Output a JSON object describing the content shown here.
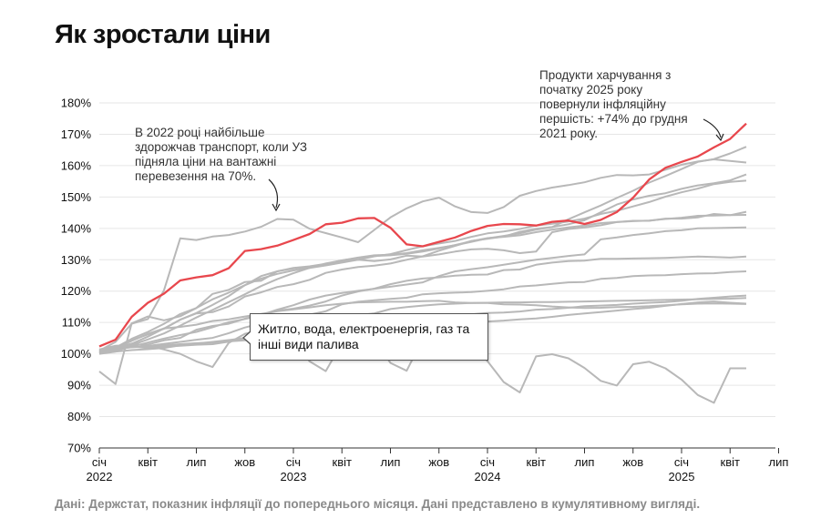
{
  "title": "Як зростали ціни",
  "annotations": {
    "left": "В 2022 році найбільше здорожчав транспорт, коли УЗ підняла ціни на вантажні перевезення на 70%.",
    "right": "Продукти харчування з початку 2025 року повернули інфляційну першість: +74% до грудня 2021 року."
  },
  "tooltip": "Житло, вода, електроенергія, газ та інші види палива",
  "source": "Дані: Держстат, показник інфляції до попереднього місяця. Дані представлено в кумулятивному вигляді.",
  "colors": {
    "highlight": "#e8474d",
    "other": "#b8b8b8",
    "grid": "#e6e6e6"
  },
  "chart_data": {
    "type": "line",
    "x_start": "2022-01",
    "ylim": [
      70,
      180
    ],
    "y_ticks": [
      "70%",
      "80%",
      "90%",
      "100%",
      "110%",
      "120%",
      "130%",
      "140%",
      "150%",
      "160%",
      "170%",
      "180%"
    ],
    "x_ticks": [
      {
        "label": "січ",
        "year": "2022"
      },
      {
        "label": "квіт",
        "year": ""
      },
      {
        "label": "лип",
        "year": ""
      },
      {
        "label": "жов",
        "year": ""
      },
      {
        "label": "січ",
        "year": "2023"
      },
      {
        "label": "квіт",
        "year": ""
      },
      {
        "label": "лип",
        "year": ""
      },
      {
        "label": "жов",
        "year": ""
      },
      {
        "label": "січ",
        "year": "2024"
      },
      {
        "label": "квіт",
        "year": ""
      },
      {
        "label": "лип",
        "year": ""
      },
      {
        "label": "жов",
        "year": ""
      },
      {
        "label": "січ",
        "year": "2025"
      },
      {
        "label": "квіт",
        "year": ""
      },
      {
        "label": "лип",
        "year": ""
      }
    ],
    "highlight_series": {
      "name": "Продукти харчування",
      "values": [
        102.4,
        104.5,
        111.8,
        116.3,
        119.2,
        123.4,
        124.4,
        125.1,
        127.3,
        132.8,
        133.4,
        134.5,
        136.3,
        138.2,
        141.3,
        141.8,
        143.2,
        143.3,
        140.2,
        134.9,
        134.3,
        135.7,
        137.1,
        139.2,
        140.8,
        141.4,
        141.3,
        140.9,
        142.1,
        142.5,
        141.4,
        142.7,
        145.2,
        149.8,
        155.6,
        159.3,
        161.2,
        162.9,
        165.8,
        168.5,
        173.4
      ]
    },
    "series": [
      {
        "values": [
          101.0,
          103.8,
          109.6,
          111.1,
          120.3,
          136.8,
          136.3,
          137.4,
          137.9,
          139.0,
          140.5,
          143.0,
          142.8,
          139.9,
          138.5,
          137.1,
          135.6,
          139.5,
          143.5,
          146.4,
          148.6,
          149.8,
          147.0,
          145.2,
          144.9,
          146.8,
          150.4,
          151.9,
          153.0,
          153.8,
          154.7,
          156.1,
          157.0,
          156.9,
          157.2,
          158.7,
          160.3,
          161.3,
          162.0,
          161.5,
          161.0
        ]
      },
      {
        "values": [
          100.5,
          102.0,
          104.3,
          106.2,
          108.0,
          110.9,
          112.9,
          113.3,
          115.1,
          118.3,
          119.6,
          121.3,
          122.2,
          123.6,
          125.8,
          126.9,
          127.7,
          128.1,
          128.8,
          130.0,
          131.1,
          132.9,
          134.4,
          136.0,
          136.7,
          137.4,
          138.9,
          139.9,
          140.4,
          142.9,
          145.1,
          147.3,
          149.7,
          152.0,
          154.6,
          156.7,
          158.9,
          161.2,
          162.1,
          163.9,
          166.0
        ]
      },
      {
        "values": [
          100.3,
          101.4,
          103.2,
          105.5,
          108.1,
          110.9,
          113.0,
          115.6,
          118.4,
          121.9,
          124.8,
          126.3,
          127.4,
          127.9,
          128.7,
          129.8,
          130.7,
          131.4,
          131.6,
          132.1,
          133.0,
          133.8,
          134.6,
          135.7,
          136.8,
          137.6,
          138.4,
          139.6,
          140.4,
          141.3,
          142.6,
          145.1,
          147.6,
          149.2,
          150.4,
          151.2,
          152.6,
          153.7,
          154.4,
          155.3,
          157.2
        ]
      },
      {
        "values": [
          100.6,
          102.0,
          104.8,
          107.0,
          109.6,
          112.7,
          114.6,
          117.4,
          119.5,
          121.9,
          124.0,
          125.5,
          126.6,
          127.4,
          128.2,
          129.1,
          130.0,
          131.1,
          131.8,
          133.1,
          134.3,
          135.2,
          136.0,
          137.3,
          138.4,
          139.0,
          139.8,
          140.9,
          141.5,
          142.2,
          143.1,
          144.6,
          145.6,
          147.0,
          148.4,
          150.1,
          151.5,
          152.7,
          154.1,
          154.8,
          155.2
        ]
      },
      {
        "values": [
          100.4,
          101.3,
          102.8,
          104.6,
          106.5,
          109.0,
          111.6,
          114.0,
          116.5,
          119.0,
          121.6,
          123.8,
          125.7,
          127.4,
          128.8,
          129.8,
          130.6,
          131.2,
          131.4,
          131.9,
          132.6,
          133.6,
          134.7,
          135.9,
          136.9,
          137.3,
          137.8,
          138.8,
          139.6,
          140.3,
          140.9,
          141.7,
          142.0,
          142.3,
          142.5,
          143.0,
          143.4,
          144.0,
          144.1,
          144.2,
          144.3
        ]
      },
      {
        "values": [
          100.2,
          101.0,
          102.3,
          103.6,
          104.9,
          106.0,
          107.0,
          108.5,
          110.1,
          111.1,
          112.4,
          114.1,
          115.5,
          117.3,
          118.6,
          119.4,
          120.1,
          120.7,
          121.4,
          122.1,
          122.8,
          124.8,
          126.3,
          127.0,
          127.6,
          128.4,
          129.2,
          130.0,
          130.6,
          131.2,
          131.7,
          136.5,
          137.1,
          137.9,
          138.4,
          139.1,
          139.4,
          140.0,
          140.1,
          140.2,
          140.3
        ]
      },
      {
        "values": [
          94.4,
          90.4,
          109.7,
          111.9,
          110.7,
          112.0,
          114.6,
          119.1,
          120.4,
          122.9,
          123.3,
          126.3,
          127.2,
          127.8,
          128.6,
          129.6,
          130.0,
          129.6,
          130.1,
          131.3,
          131.0,
          131.7,
          132.6,
          133.3,
          133.5,
          133.0,
          132.1,
          132.6,
          138.8,
          139.8,
          140.3,
          141.0,
          142.0,
          142.4,
          142.4,
          143.1,
          143.1,
          143.5,
          144.6,
          144.2,
          145.3
        ]
      },
      {
        "values": [
          101.4,
          102.6,
          102.8,
          103.0,
          104.3,
          105.1,
          107.7,
          108.9,
          109.6,
          111.2,
          112.4,
          113.8,
          114.4,
          115.4,
          116.7,
          118.6,
          119.9,
          120.8,
          122.2,
          123.3,
          124.0,
          124.4,
          124.9,
          125.2,
          125.3,
          126.7,
          126.9,
          128.4,
          129.1,
          129.6,
          129.7,
          130.3,
          130.3,
          130.4,
          130.5,
          130.6,
          130.8,
          131.0,
          130.9,
          130.7,
          131.0
        ]
      },
      {
        "values": [
          100.0,
          101.5,
          102.1,
          102.5,
          103.2,
          103.8,
          104.5,
          105.1,
          106.6,
          108.4,
          109.7,
          110.7,
          111.3,
          112.5,
          113.6,
          115.8,
          116.6,
          117.1,
          117.5,
          117.9,
          119.0,
          119.3,
          119.5,
          119.7,
          120.1,
          120.6,
          121.5,
          121.8,
          122.3,
          122.8,
          122.9,
          123.9,
          124.2,
          124.8,
          125.0,
          125.1,
          125.4,
          125.6,
          125.7,
          126.1,
          126.3
        ]
      },
      {
        "values": [
          100.0,
          100.7,
          101.2,
          101.5,
          101.9,
          102.7,
          103.3,
          103.8,
          104.4,
          105.1,
          105.8,
          106.8,
          107.6,
          108.1,
          108.6,
          109.0,
          109.5,
          110.0,
          110.7,
          111.1,
          111.4,
          111.8,
          112.2,
          112.6,
          113.0,
          113.2,
          113.5,
          114.1,
          114.3,
          114.7,
          115.2,
          115.4,
          115.6,
          116.0,
          116.3,
          116.5,
          116.9,
          117.5,
          117.9,
          118.3,
          118.6
        ]
      },
      {
        "values": [
          100.6,
          101.9,
          104.1,
          106.4,
          108.1,
          108.6,
          109.3,
          110.5,
          111.0,
          111.9,
          112.7,
          113.6,
          114.2,
          114.8,
          115.5,
          116.0,
          116.4,
          116.5,
          116.6,
          116.6,
          116.8,
          116.9,
          116.4,
          116.2,
          116.2,
          115.8,
          115.7,
          115.5,
          115.1,
          114.8,
          114.6,
          114.7,
          114.9,
          115.0,
          115.2,
          115.5,
          115.8,
          116.0,
          116.1,
          116.0,
          115.9
        ]
      },
      {
        "values": [
          101.2,
          101.9,
          102.4,
          101.8,
          102.3,
          102.6,
          102.9,
          103.1,
          103.9,
          104.9,
          106.1,
          107.1,
          108.6,
          109.5,
          110.9,
          111.6,
          112.3,
          112.9,
          114.3,
          114.9,
          115.4,
          115.8,
          116.0,
          116.2,
          116.3,
          116.4,
          116.4,
          116.5,
          116.5,
          116.6,
          116.7,
          116.8,
          116.9,
          117.0,
          117.1,
          117.2,
          117.3,
          117.4,
          117.5,
          117.6,
          117.8
        ]
      },
      {
        "values": [
          101.4,
          102.1,
          103.3,
          102.6,
          101.4,
          100.0,
          97.6,
          95.8,
          103.5,
          106.4,
          107.6,
          106.2,
          104.7,
          97.6,
          94.5,
          103.5,
          104.2,
          104.8,
          97.1,
          94.6,
          104.8,
          105.4,
          106.4,
          103.1,
          97.7,
          91.0,
          87.7,
          99.2,
          99.9,
          98.6,
          95.5,
          91.4,
          89.9,
          96.7,
          97.5,
          95.4,
          91.8,
          86.9,
          84.4,
          95.4,
          95.4
        ]
      },
      {
        "values": [
          100.6,
          101.9,
          102.1,
          102.3,
          102.7,
          103.1,
          103.4,
          103.6,
          104.0,
          104.3,
          104.9,
          105.3,
          105.8,
          106.2,
          106.6,
          106.8,
          106.9,
          107.2,
          107.4,
          107.8,
          108.3,
          108.9,
          109.2,
          109.7,
          110.3,
          110.6,
          111.0,
          111.3,
          111.8,
          112.4,
          112.9,
          113.3,
          113.8,
          114.3,
          114.7,
          115.3,
          115.9,
          116.4,
          116.7,
          116.3,
          116.0
        ]
      }
    ]
  }
}
